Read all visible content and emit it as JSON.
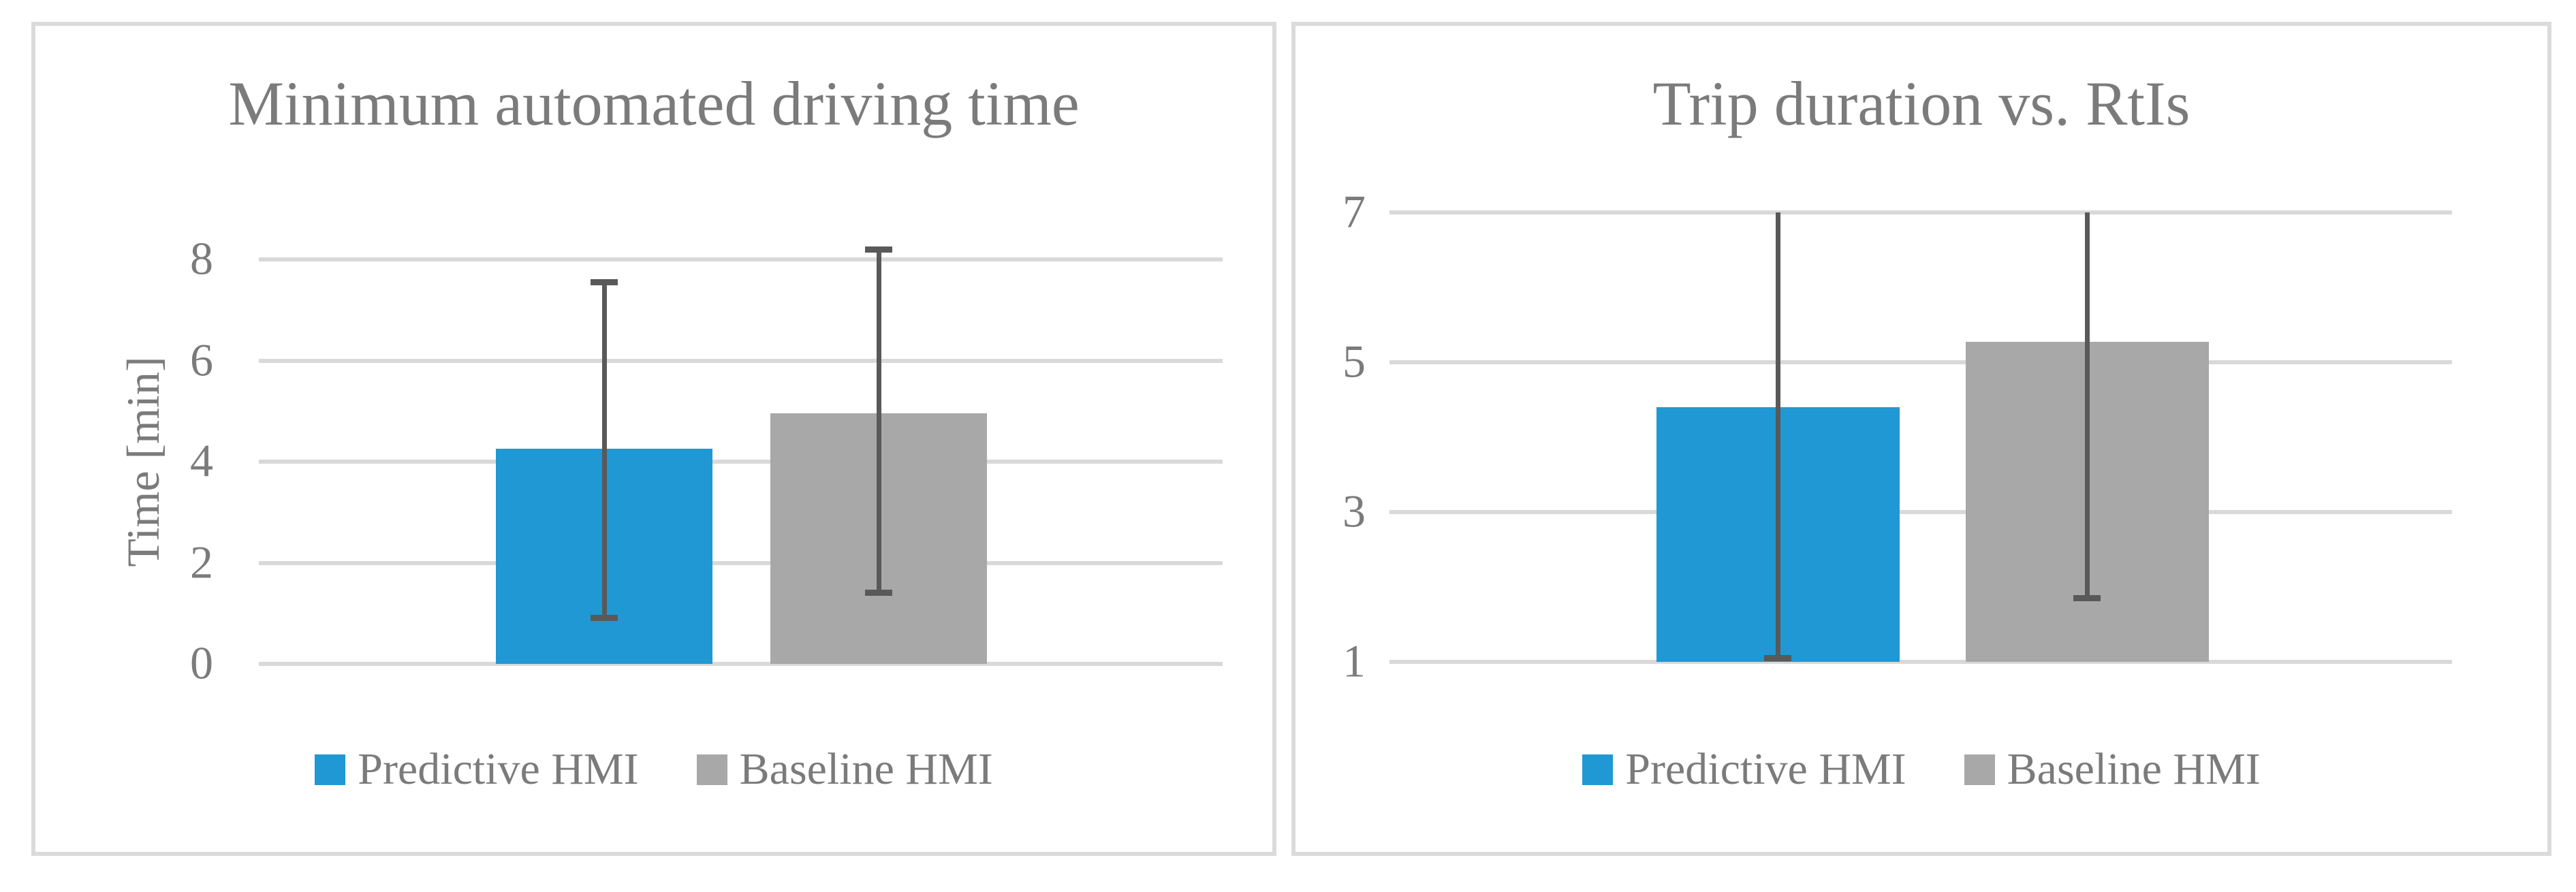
{
  "figure": {
    "background": "#ffffff",
    "panel_border_color": "#dbdbdb"
  },
  "colors": {
    "predictive_blue": "#2098d4",
    "baseline_gray": "#a8a8a8",
    "error_bar": "#595959",
    "gridline": "#d9d9d9",
    "text": "#7b7b7b"
  },
  "charts": [
    {
      "title": "Minimum automated driving time",
      "y_axis_label": "Time [min]",
      "legend": [
        {
          "label": "Predictive HMI",
          "color": "#2098d4"
        },
        {
          "label": "Baseline HMI",
          "color": "#a8a8a8"
        }
      ],
      "chart_data": {
        "type": "bar",
        "categories": [
          ""
        ],
        "series": [
          {
            "name": "Predictive HMI",
            "values": [
              4.25
            ],
            "error_low": [
              0.9
            ],
            "error_high": [
              7.55
            ],
            "color": "#2098d4"
          },
          {
            "name": "Baseline HMI",
            "values": [
              4.95
            ],
            "error_low": [
              1.4
            ],
            "error_high": [
              8.2
            ],
            "color": "#a8a8a8"
          }
        ],
        "title": "Minimum automated driving time",
        "xlabel": "",
        "ylabel": "Time [min]",
        "yticks": [
          0,
          2,
          4,
          6,
          8
        ],
        "ylim": [
          0,
          9
        ],
        "grid": true,
        "legend_position": "bottom"
      }
    },
    {
      "title": "Trip duration vs. RtIs",
      "y_axis_label": "",
      "legend": [
        {
          "label": "Predictive HMI",
          "color": "#2098d4"
        },
        {
          "label": "Baseline HMI",
          "color": "#a8a8a8"
        }
      ],
      "chart_data": {
        "type": "bar",
        "categories": [
          ""
        ],
        "series": [
          {
            "name": "Predictive HMI",
            "values": [
              4.4
            ],
            "error_low": [
              1.05
            ],
            "error_high": [
              7.0
            ],
            "color": "#2098d4"
          },
          {
            "name": "Baseline HMI",
            "values": [
              5.27
            ],
            "error_low": [
              1.85
            ],
            "error_high": [
              7.0
            ],
            "color": "#a8a8a8"
          }
        ],
        "title": "Trip duration vs. RtIs",
        "xlabel": "",
        "ylabel": "",
        "yticks": [
          1,
          3,
          5,
          7
        ],
        "ylim": [
          1,
          7
        ],
        "grid": true,
        "legend_position": "bottom"
      }
    }
  ]
}
